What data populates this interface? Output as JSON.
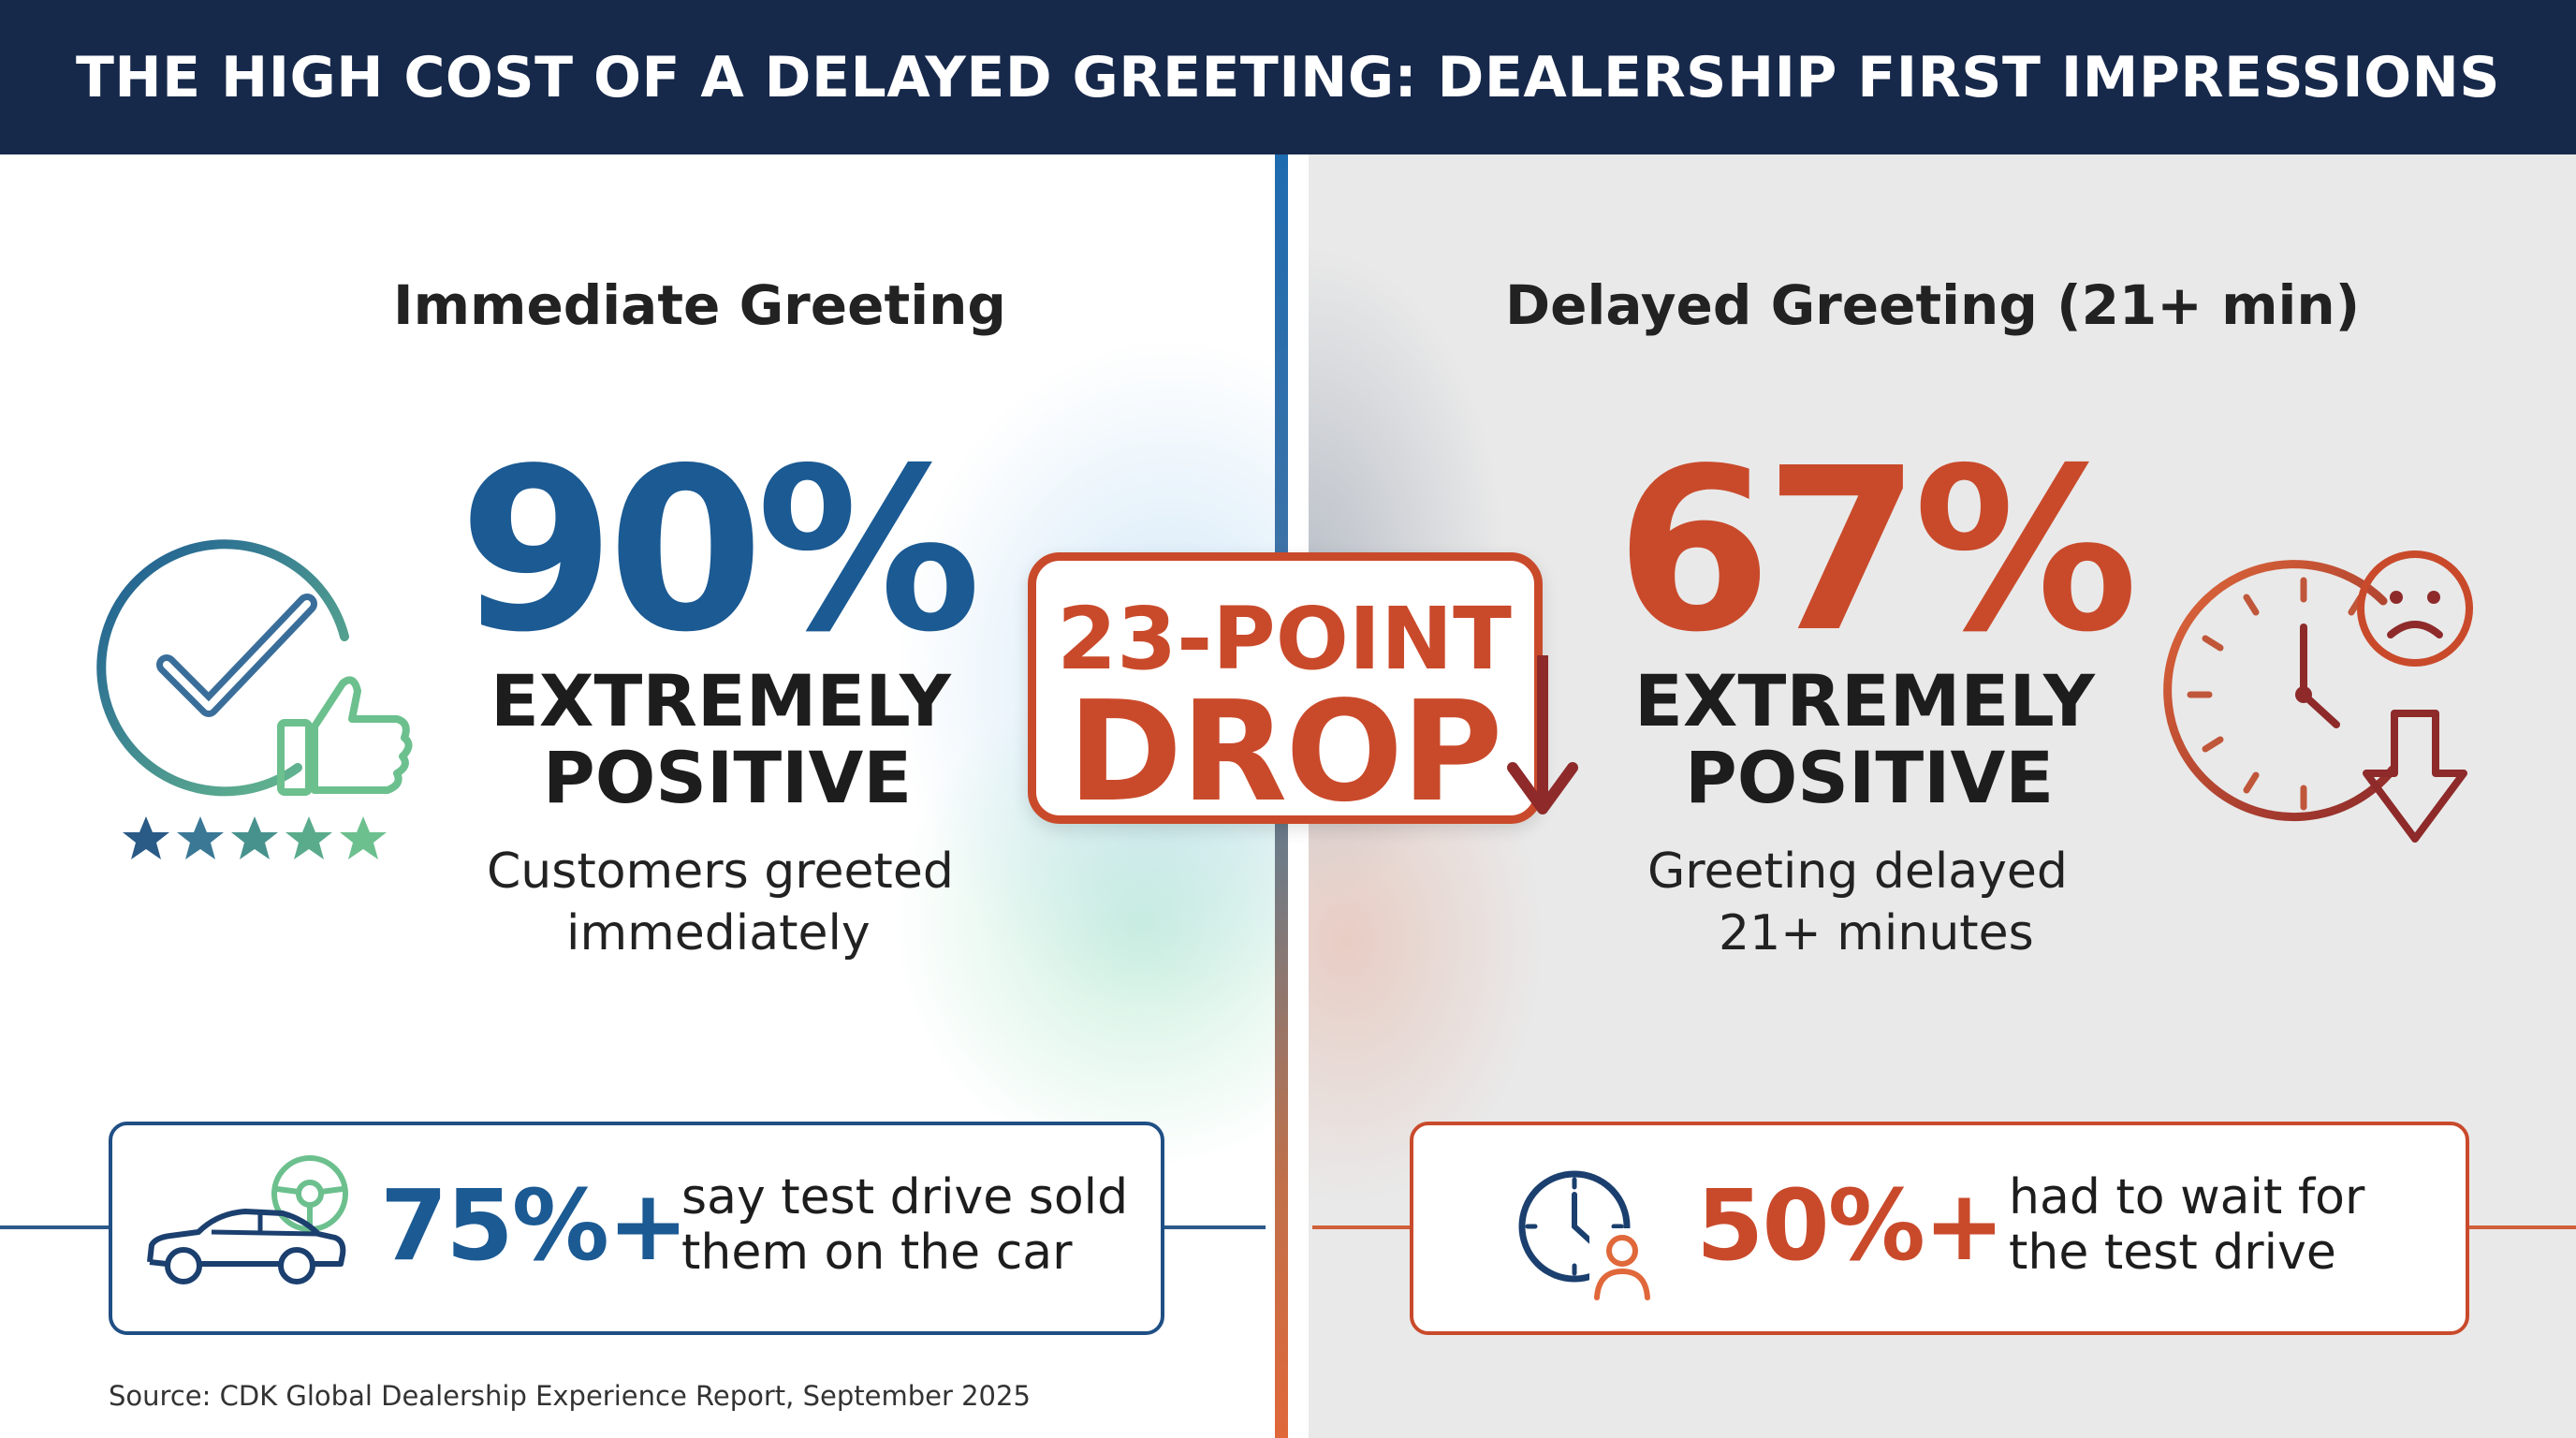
{
  "header": {
    "title": "THE HIGH COST OF A DELAYED GREETING: DEALERSHIP FIRST IMPRESSIONS"
  },
  "left": {
    "title": "Immediate Greeting",
    "percent": "90%",
    "label_line1": "EXTREMELY",
    "label_line2": "POSITIVE",
    "sub_line1": "Customers greeted",
    "sub_line2": "immediately",
    "stars": 5,
    "stat": {
      "value": "75%+",
      "text_line1": "say test drive sold",
      "text_line2": "them on the car"
    }
  },
  "center": {
    "badge_line1": "23-POINT",
    "badge_line2": "DROP"
  },
  "right": {
    "title": "Delayed Greeting (21+ min)",
    "percent": "67%",
    "label_line1": "EXTREMELY",
    "label_line2": "POSITIVE",
    "sub_line1": "Greeting delayed",
    "sub_line2": "21+ minutes",
    "stat": {
      "value": "50%+",
      "text_line1": "had to wait for",
      "text_line2": "the test drive"
    }
  },
  "source": "Source: CDK Global Dealership Experience Report, September 2025",
  "colors": {
    "header_bg": "#17294b",
    "blue": "#1b5a93",
    "orange": "#c94a2b",
    "green": "#6cc08e"
  },
  "icons": [
    "checkmark-circle-icon",
    "thumbs-up-icon",
    "star-icon",
    "car-icon",
    "steering-wheel-icon",
    "clock-icon",
    "sad-face-icon",
    "down-arrow-icon",
    "person-icon"
  ]
}
